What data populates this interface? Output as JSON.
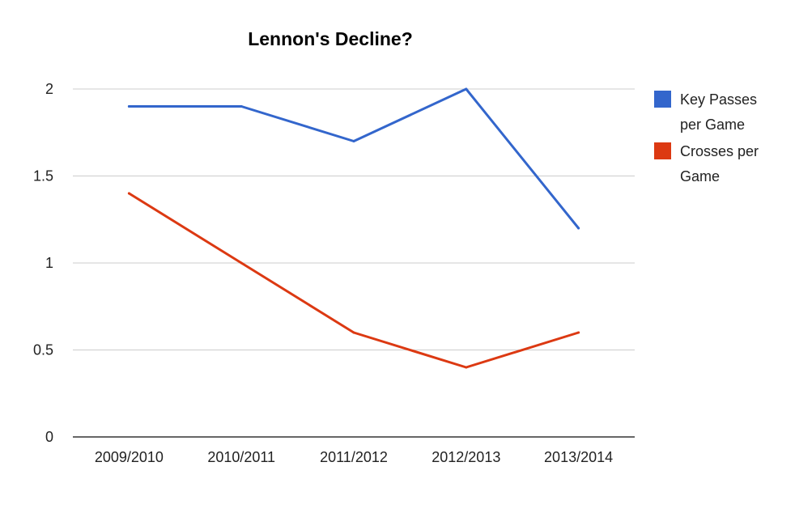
{
  "chart_data": {
    "type": "line",
    "title": "Lennon's Decline?",
    "categories": [
      "2009/2010",
      "2010/2011",
      "2011/2012",
      "2012/2013",
      "2013/2014"
    ],
    "series": [
      {
        "name": "Key Passes per Game",
        "legend_lines": [
          "Key Passes",
          "per Game"
        ],
        "color": "#3366cc",
        "values": [
          1.9,
          1.9,
          1.7,
          2.0,
          1.2
        ]
      },
      {
        "name": "Crosses per Game",
        "legend_lines": [
          "Crosses per",
          "Game"
        ],
        "color": "#dc3912",
        "values": [
          1.4,
          1.0,
          0.6,
          0.4,
          0.6
        ]
      }
    ],
    "yticks": [
      0,
      0.5,
      1,
      1.5,
      2
    ],
    "ytick_labels": [
      "0",
      "0.5",
      "1",
      "1.5",
      "2"
    ],
    "ylim": [
      0,
      2
    ],
    "xlabel": "",
    "ylabel": "",
    "grid": true,
    "legend_position": "right"
  }
}
